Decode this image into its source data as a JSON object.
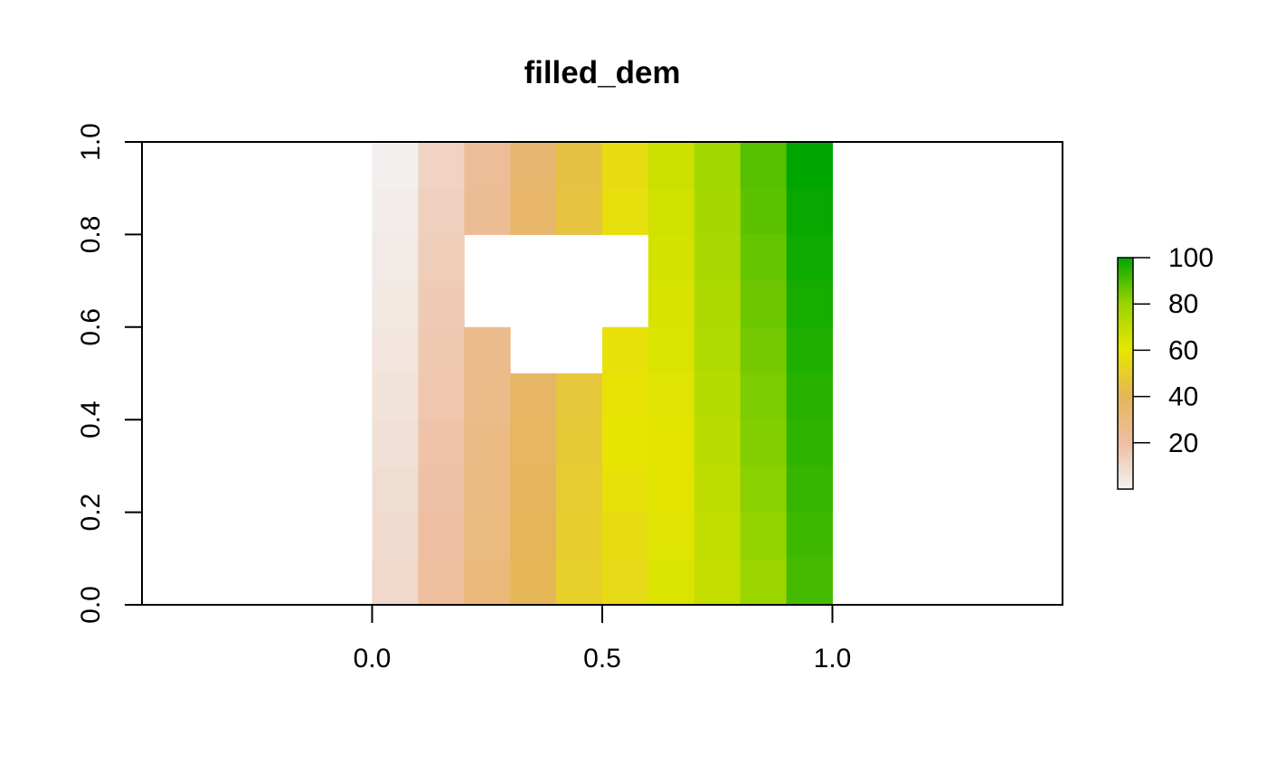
{
  "chart_data": {
    "type": "heatmap",
    "title": "filled_dem",
    "xlabel": "",
    "ylabel": "",
    "xlim": [
      -0.5,
      1.5
    ],
    "ylim": [
      0,
      1
    ],
    "x_ticks": [
      0,
      0.5,
      1
    ],
    "x_tick_labels": [
      "0.0",
      "0.5",
      "1.0"
    ],
    "y_ticks": [
      0,
      0.2,
      0.4,
      0.6,
      0.8,
      1
    ],
    "y_tick_labels": [
      "0.0",
      "0.2",
      "0.4",
      "0.6",
      "0.8",
      "1.0"
    ],
    "raster": {
      "extent": {
        "xmin": 0,
        "xmax": 1,
        "ymin": 0,
        "ymax": 1
      },
      "ncol": 10,
      "nrow": 10,
      "row_order": "top-to-bottom",
      "values": [
        [
          1,
          12,
          23,
          34,
          45,
          56,
          67,
          78,
          89,
          100
        ],
        [
          2,
          13,
          24,
          35,
          46,
          57,
          66,
          77,
          88,
          99
        ],
        [
          3,
          14,
          null,
          null,
          null,
          null,
          65,
          76,
          87,
          98
        ],
        [
          4,
          15,
          null,
          null,
          null,
          null,
          64,
          75,
          86,
          97
        ],
        [
          5,
          16,
          26,
          null,
          null,
          58,
          63,
          74,
          85,
          96
        ],
        [
          6,
          17,
          27,
          37,
          47,
          59,
          62,
          73,
          84,
          95
        ],
        [
          7,
          18,
          28,
          38,
          48,
          60,
          61,
          72,
          83,
          94
        ],
        [
          8,
          19,
          29,
          39,
          49,
          58,
          61,
          71,
          82,
          93
        ],
        [
          9,
          20,
          30,
          40,
          50,
          56,
          62,
          70,
          81,
          92
        ],
        [
          10,
          21,
          31,
          41,
          51,
          55,
          63,
          69,
          80,
          91
        ]
      ]
    },
    "legend": {
      "placement": "right",
      "min": 0,
      "max": 100,
      "ticks": [
        20,
        40,
        60,
        80,
        100
      ],
      "tick_labels": [
        "20",
        "40",
        "60",
        "80",
        "100"
      ]
    },
    "palette": [
      "#f2f2f2",
      "#eebea2",
      "#e6b55a",
      "#e7e600",
      "#9ad500",
      "#00a600"
    ]
  }
}
